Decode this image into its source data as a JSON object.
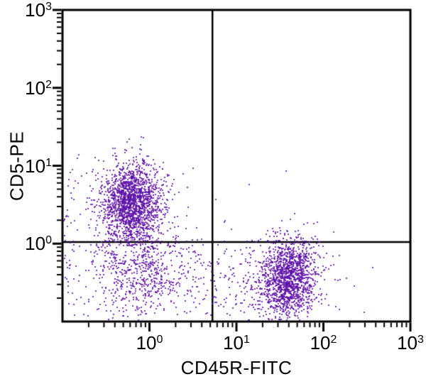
{
  "figure": {
    "background_color": "#ffffff",
    "axis_color": "#000000",
    "dot_color": "#5B0FA8"
  },
  "chart_data": {
    "type": "scatter",
    "title": "",
    "xlabel": "CD45R-FITC",
    "ylabel": "CD5-PE",
    "x_scale": "log",
    "y_scale": "log",
    "xlim": [
      0.1,
      1000
    ],
    "ylim": [
      0.1,
      1000
    ],
    "tick_base": "10",
    "x_tick_exponents": [
      0,
      1,
      2,
      3
    ],
    "y_tick_exponents": [
      0,
      1,
      2,
      3
    ],
    "grid": false,
    "legend": "none",
    "quadrant_gates": {
      "x": 5.3,
      "y": 1.05
    },
    "clusters": [
      {
        "name": "CD5-positive CD45R-negative population",
        "center_x": 0.62,
        "center_y": 3.45,
        "sigma_log_x": 0.16,
        "sigma_log_y": 0.24,
        "count": 1500
      },
      {
        "name": "CD5-positive halo",
        "center_x": 0.66,
        "center_y": 2.8,
        "sigma_log_x": 0.3,
        "sigma_log_y": 0.38,
        "count": 240
      },
      {
        "name": "double-negative diffuse population",
        "center_x": 0.79,
        "center_y": 0.45,
        "sigma_log_x": 0.3,
        "sigma_log_y": 0.32,
        "count": 700
      },
      {
        "name": "CD45R-positive CD5-negative population",
        "center_x": 40.0,
        "center_y": 0.355,
        "sigma_log_x": 0.16,
        "sigma_log_y": 0.26,
        "count": 1250
      },
      {
        "name": "CD45R-positive halo",
        "center_x": 33.0,
        "center_y": 0.32,
        "sigma_log_x": 0.33,
        "sigma_log_y": 0.34,
        "count": 280
      },
      {
        "name": "bridge population",
        "center_x": 6.3,
        "center_y": 0.32,
        "sigma_log_x": 0.45,
        "sigma_log_y": 0.28,
        "count": 170
      },
      {
        "name": "left-edge events",
        "center_x": 0.117,
        "center_y": 0.8,
        "sigma_log_x": 0.05,
        "sigma_log_y": 0.5,
        "count": 45
      }
    ],
    "outlier_points": [
      [
        37,
        8.6
      ],
      [
        14,
        5.7
      ],
      [
        5.8,
        3.7
      ],
      [
        80,
        1.25
      ],
      [
        76,
        1.15
      ],
      [
        0.8,
        16
      ],
      [
        0.55,
        20
      ],
      [
        1.1,
        12
      ],
      [
        2.7,
        2.3
      ],
      [
        3.5,
        1.6
      ],
      [
        0.13,
        9
      ],
      [
        0.15,
        6
      ]
    ]
  }
}
